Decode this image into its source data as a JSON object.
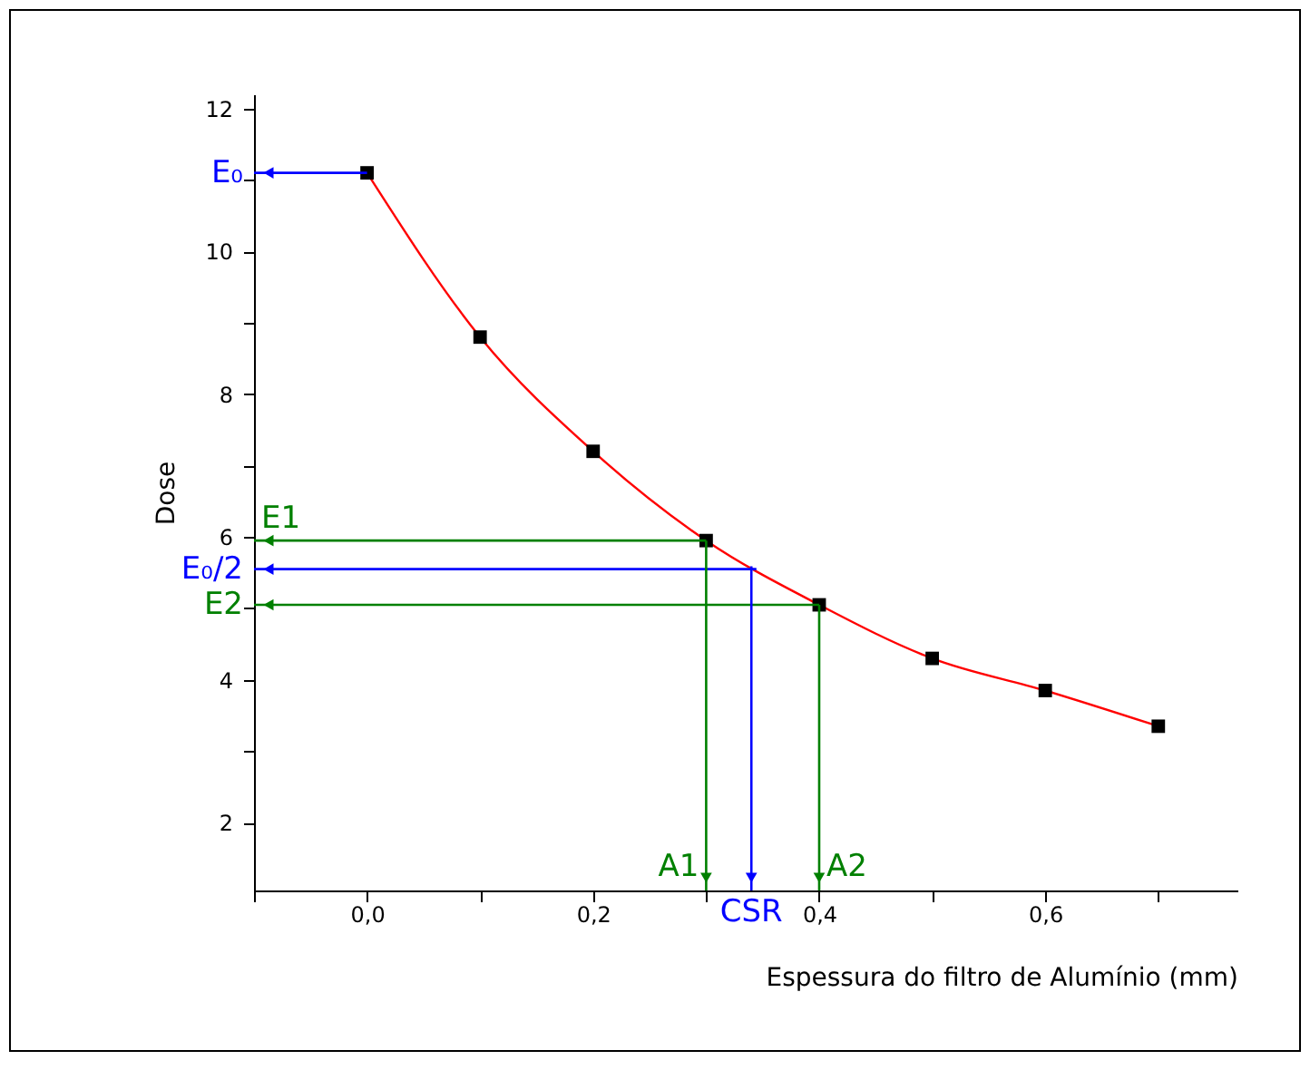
{
  "chart_data": {
    "type": "line",
    "xlabel": "Espessura do filtro de Alumínio (mm)",
    "ylabel": "Dose",
    "x": [
      0,
      0.1,
      0.2,
      0.3,
      0.4,
      0.5,
      0.6,
      0.7
    ],
    "series": [
      {
        "type": "line",
        "color": "#ff0000",
        "marker": "none",
        "values": [
          11.1,
          8.8,
          7.2,
          5.95,
          5.05,
          4.3,
          3.85,
          3.35
        ]
      },
      {
        "type": "scatter",
        "color": "#000000",
        "marker": "square",
        "values": [
          11.1,
          8.8,
          7.2,
          5.95,
          5.05,
          4.3,
          3.85,
          3.35
        ]
      }
    ],
    "xlim": [
      -0.1,
      0.77
    ],
    "ylim": [
      1.05,
      12.2
    ],
    "xticks": [
      {
        "value": -0.1,
        "label": null
      },
      {
        "value": 0,
        "label": "0,0"
      },
      {
        "value": 0.1,
        "label": null
      },
      {
        "value": 0.2,
        "label": "0,2"
      },
      {
        "value": 0.3,
        "label": null
      },
      {
        "value": 0.4,
        "label": "0,4"
      },
      {
        "value": 0.5,
        "label": null
      },
      {
        "value": 0.6,
        "label": "0,6"
      },
      {
        "value": 0.7,
        "label": null
      }
    ],
    "yticks": [
      2,
      {
        "value": 3,
        "label": null
      },
      4,
      {
        "value": 5,
        "label": null
      },
      6,
      {
        "value": 7,
        "label": null
      },
      8,
      {
        "value": 9,
        "label": null
      },
      10,
      {
        "value": 11,
        "label": null
      },
      12
    ],
    "grid": false,
    "ref_lines": [
      {
        "axis": "y",
        "value": 11.1,
        "label": "E₀",
        "color": "#0000ff"
      },
      {
        "axis": "y",
        "value": 5.95,
        "label": "E1",
        "color": "#008000"
      },
      {
        "axis": "y",
        "value": 5.55,
        "label": "E₀/2",
        "color": "#0000ff"
      },
      {
        "axis": "y",
        "value": 5.05,
        "label": "E2",
        "color": "#008000"
      },
      {
        "axis": "x",
        "value": 0.3,
        "label": "A1",
        "color": "#008000"
      },
      {
        "axis": "x",
        "value": 0.34,
        "label": "CSR",
        "color": "#0000ff"
      },
      {
        "axis": "x",
        "value": 0.4,
        "label": "A2",
        "color": "#008000"
      }
    ]
  }
}
